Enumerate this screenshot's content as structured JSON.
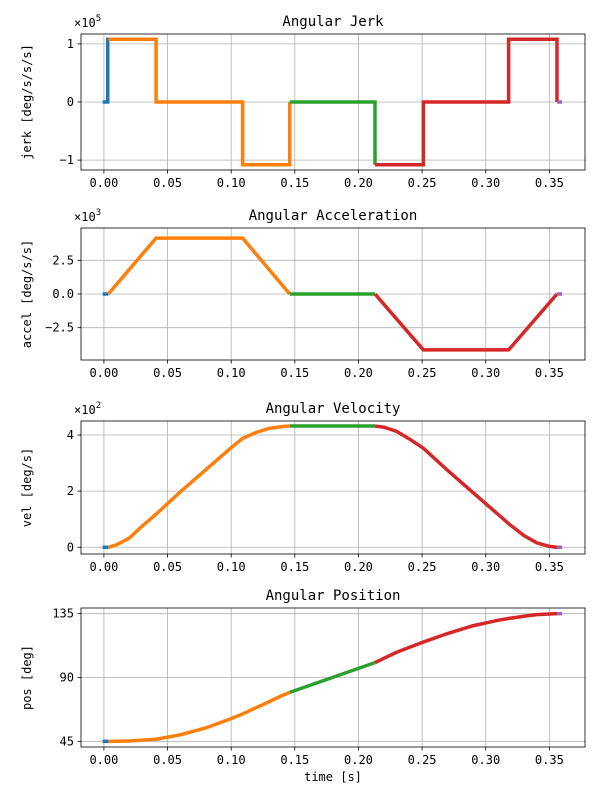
{
  "chart_data": [
    {
      "type": "line",
      "title": "Angular Jerk",
      "xlabel": "",
      "ylabel": "jerk [deg/s/s/s]",
      "y_multiplier": "×10^5",
      "y_multiplier_base": "×10",
      "y_multiplier_exp": "5",
      "xlim": [
        -0.018,
        0.378
      ],
      "ylim": [
        -1.17,
        1.17
      ],
      "xticks": [
        0,
        0.05,
        0.1,
        0.15,
        0.2,
        0.25,
        0.3,
        0.35
      ],
      "xtick_labels": [
        "0.00",
        "0.05",
        "0.10",
        "0.15",
        "0.20",
        "0.25",
        "0.30",
        "0.35"
      ],
      "yticks": [
        -1,
        0,
        1
      ],
      "ytick_labels": [
        "−1",
        "0",
        "1"
      ],
      "grid": true,
      "series": [
        {
          "color": "#1f77b4",
          "points": [
            [
              -0.001,
              0
            ],
            [
              0.003,
              0
            ],
            [
              0.003,
              1.08
            ],
            [
              0.0035,
              1.08
            ]
          ]
        },
        {
          "color": "#ff7f0e",
          "points": [
            [
              0.0035,
              1.08
            ],
            [
              0.041,
              1.08
            ],
            [
              0.041,
              0
            ],
            [
              0.109,
              0
            ],
            [
              0.109,
              -1.08
            ],
            [
              0.146,
              -1.08
            ],
            [
              0.146,
              0
            ]
          ]
        },
        {
          "color": "#2ca02c",
          "points": [
            [
              0.146,
              0
            ],
            [
              0.213,
              0
            ],
            [
              0.213,
              -1.08
            ]
          ]
        },
        {
          "color": "#d62728",
          "points": [
            [
              0.213,
              -1.08
            ],
            [
              0.251,
              -1.08
            ],
            [
              0.251,
              0
            ],
            [
              0.318,
              0
            ],
            [
              0.318,
              1.08
            ],
            [
              0.356,
              1.08
            ],
            [
              0.356,
              0
            ]
          ]
        },
        {
          "color": "#9467bd",
          "points": [
            [
              0.356,
              0
            ],
            [
              0.36,
              0
            ]
          ]
        }
      ]
    },
    {
      "type": "line",
      "title": "Angular Acceleration",
      "xlabel": "",
      "ylabel": "accel [deg/s/s]",
      "y_multiplier": "×10^3",
      "y_multiplier_base": "×10",
      "y_multiplier_exp": "3",
      "xlim": [
        -0.018,
        0.378
      ],
      "ylim": [
        -4.9,
        4.9
      ],
      "xticks": [
        0,
        0.05,
        0.1,
        0.15,
        0.2,
        0.25,
        0.3,
        0.35
      ],
      "xtick_labels": [
        "0.00",
        "0.05",
        "0.10",
        "0.15",
        "0.20",
        "0.25",
        "0.30",
        "0.35"
      ],
      "yticks": [
        -2.5,
        0,
        2.5
      ],
      "ytick_labels": [
        "−2.5",
        "0.0",
        "2.5"
      ],
      "grid": true,
      "series": [
        {
          "color": "#1f77b4",
          "points": [
            [
              -0.001,
              0
            ],
            [
              0.0035,
              0
            ]
          ]
        },
        {
          "color": "#ff7f0e",
          "points": [
            [
              0.0035,
              0
            ],
            [
              0.041,
              4.15
            ],
            [
              0.109,
              4.15
            ],
            [
              0.146,
              0
            ]
          ]
        },
        {
          "color": "#2ca02c",
          "points": [
            [
              0.146,
              0
            ],
            [
              0.213,
              0
            ]
          ]
        },
        {
          "color": "#d62728",
          "points": [
            [
              0.213,
              0
            ],
            [
              0.251,
              -4.15
            ],
            [
              0.318,
              -4.15
            ],
            [
              0.356,
              0
            ]
          ]
        },
        {
          "color": "#9467bd",
          "points": [
            [
              0.356,
              0
            ],
            [
              0.36,
              0
            ]
          ]
        }
      ]
    },
    {
      "type": "line",
      "title": "Angular Velocity",
      "xlabel": "",
      "ylabel": "vel [deg/s]",
      "y_multiplier": "×10^2",
      "y_multiplier_base": "×10",
      "y_multiplier_exp": "2",
      "xlim": [
        -0.018,
        0.378
      ],
      "ylim": [
        -0.24,
        4.5
      ],
      "xticks": [
        0,
        0.05,
        0.1,
        0.15,
        0.2,
        0.25,
        0.3,
        0.35
      ],
      "xtick_labels": [
        "0.00",
        "0.05",
        "0.10",
        "0.15",
        "0.20",
        "0.25",
        "0.30",
        "0.35"
      ],
      "yticks": [
        0,
        2,
        4
      ],
      "ytick_labels": [
        "0",
        "2",
        "4"
      ],
      "grid": true,
      "series": [
        {
          "color": "#1f77b4",
          "points": [
            [
              -0.001,
              0
            ],
            [
              0.0035,
              0
            ]
          ]
        },
        {
          "color": "#ff7f0e",
          "points": [
            [
              0.0035,
              0
            ],
            [
              0.01,
              0.09
            ],
            [
              0.02,
              0.33
            ],
            [
              0.03,
              0.75
            ],
            [
              0.041,
              1.18
            ],
            [
              0.06,
              1.97
            ],
            [
              0.08,
              2.76
            ],
            [
              0.1,
              3.55
            ],
            [
              0.109,
              3.88
            ],
            [
              0.12,
              4.1
            ],
            [
              0.13,
              4.24
            ],
            [
              0.14,
              4.3
            ],
            [
              0.146,
              4.32
            ]
          ]
        },
        {
          "color": "#2ca02c",
          "points": [
            [
              0.146,
              4.32
            ],
            [
              0.213,
              4.32
            ]
          ]
        },
        {
          "color": "#d62728",
          "points": [
            [
              0.213,
              4.32
            ],
            [
              0.22,
              4.28
            ],
            [
              0.23,
              4.13
            ],
            [
              0.24,
              3.86
            ],
            [
              0.251,
              3.53
            ],
            [
              0.27,
              2.74
            ],
            [
              0.29,
              1.95
            ],
            [
              0.31,
              1.16
            ],
            [
              0.318,
              0.84
            ],
            [
              0.33,
              0.42
            ],
            [
              0.34,
              0.16
            ],
            [
              0.35,
              0.03
            ],
            [
              0.356,
              0
            ]
          ]
        },
        {
          "color": "#9467bd",
          "points": [
            [
              0.356,
              0
            ],
            [
              0.36,
              0
            ]
          ]
        }
      ]
    },
    {
      "type": "line",
      "title": "Angular Position",
      "xlabel": "time [s]",
      "ylabel": "pos [deg]",
      "y_multiplier": "",
      "y_multiplier_base": "",
      "y_multiplier_exp": "",
      "xlim": [
        -0.018,
        0.378
      ],
      "ylim": [
        41,
        139
      ],
      "xticks": [
        0,
        0.05,
        0.1,
        0.15,
        0.2,
        0.25,
        0.3,
        0.35
      ],
      "xtick_labels": [
        "0.00",
        "0.05",
        "0.10",
        "0.15",
        "0.20",
        "0.25",
        "0.30",
        "0.35"
      ],
      "yticks": [
        45,
        90,
        135
      ],
      "ytick_labels": [
        "45",
        "90",
        "135"
      ],
      "grid": true,
      "series": [
        {
          "color": "#1f77b4",
          "points": [
            [
              -0.001,
              45
            ],
            [
              0.0035,
              45
            ]
          ]
        },
        {
          "color": "#ff7f0e",
          "points": [
            [
              0.0035,
              45
            ],
            [
              0.02,
              45.2
            ],
            [
              0.041,
              46.5
            ],
            [
              0.06,
              49.6
            ],
            [
              0.08,
              54.4
            ],
            [
              0.1,
              61.0
            ],
            [
              0.109,
              64.3
            ],
            [
              0.12,
              68.9
            ],
            [
              0.13,
              73.0
            ],
            [
              0.14,
              77.3
            ],
            [
              0.146,
              79.5
            ]
          ]
        },
        {
          "color": "#2ca02c",
          "points": [
            [
              0.146,
              79.5
            ],
            [
              0.213,
              100.5
            ]
          ]
        },
        {
          "color": "#d62728",
          "points": [
            [
              0.213,
              100.5
            ],
            [
              0.23,
              107.8
            ],
            [
              0.251,
              115.0
            ],
            [
              0.27,
              121.0
            ],
            [
              0.29,
              126.5
            ],
            [
              0.31,
              130.4
            ],
            [
              0.318,
              131.6
            ],
            [
              0.33,
              133.2
            ],
            [
              0.34,
              134.3
            ],
            [
              0.35,
              134.8
            ],
            [
              0.356,
              135
            ]
          ]
        },
        {
          "color": "#9467bd",
          "points": [
            [
              0.356,
              135
            ],
            [
              0.36,
              135
            ]
          ]
        }
      ]
    }
  ]
}
